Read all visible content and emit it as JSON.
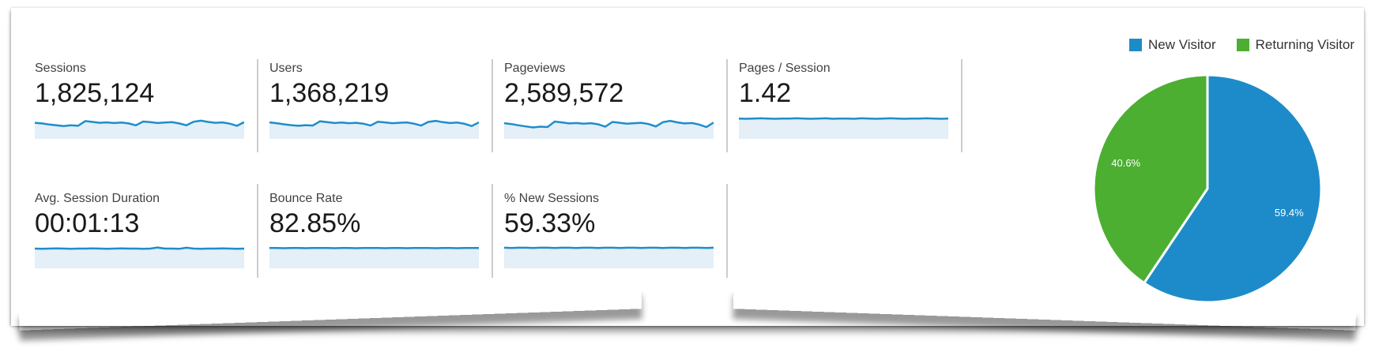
{
  "colors": {
    "blue": "#1d8bc9",
    "green": "#4caf31",
    "spark_line": "#1f8dcb",
    "spark_fill": "#e4eff8",
    "divider": "#cccccc",
    "label_text": "#414141",
    "value_text": "#1a1a1a",
    "pie_label_text": "#ffffff"
  },
  "scorecards": {
    "row1": [
      {
        "label": "Sessions",
        "value": "1,825,124"
      },
      {
        "label": "Users",
        "value": "1,368,219"
      },
      {
        "label": "Pageviews",
        "value": "2,589,572"
      },
      {
        "label": "Pages / Session",
        "value": "1.42"
      }
    ],
    "row2": [
      {
        "label": "Avg. Session Duration",
        "value": "00:01:13"
      },
      {
        "label": "Bounce Rate",
        "value": "82.85%"
      },
      {
        "label": "% New Sessions",
        "value": "59.33%"
      }
    ]
  },
  "legend": {
    "items": [
      {
        "label": "New Visitor",
        "color": "#1d8bc9"
      },
      {
        "label": "Returning Visitor",
        "color": "#4caf31"
      }
    ]
  },
  "chart_data": [
    {
      "type": "line",
      "title": "Metric sparklines (trend over report period)",
      "note": "values are normalized vertical positions (0 = top of sparkline, 1 = bottom); axes unlabeled in source",
      "grid": false,
      "series": [
        {
          "name": "Sessions",
          "display_value": "1,825,124",
          "values": [
            0.3,
            0.33,
            0.38,
            0.42,
            0.45,
            0.42,
            0.44,
            0.22,
            0.26,
            0.3,
            0.28,
            0.31,
            0.29,
            0.33,
            0.42,
            0.24,
            0.27,
            0.31,
            0.29,
            0.27,
            0.33,
            0.42,
            0.25,
            0.2,
            0.26,
            0.3,
            0.28,
            0.34,
            0.44,
            0.27
          ]
        },
        {
          "name": "Users",
          "display_value": "1,368,219",
          "values": [
            0.28,
            0.32,
            0.37,
            0.41,
            0.44,
            0.41,
            0.43,
            0.23,
            0.27,
            0.31,
            0.29,
            0.32,
            0.3,
            0.34,
            0.43,
            0.25,
            0.28,
            0.32,
            0.3,
            0.28,
            0.34,
            0.43,
            0.26,
            0.21,
            0.27,
            0.31,
            0.29,
            0.35,
            0.45,
            0.28
          ]
        },
        {
          "name": "Pageviews",
          "display_value": "2,589,572",
          "values": [
            0.32,
            0.36,
            0.42,
            0.47,
            0.52,
            0.48,
            0.5,
            0.24,
            0.28,
            0.33,
            0.31,
            0.34,
            0.32,
            0.37,
            0.48,
            0.26,
            0.3,
            0.34,
            0.32,
            0.3,
            0.36,
            0.47,
            0.27,
            0.21,
            0.28,
            0.33,
            0.31,
            0.38,
            0.5,
            0.29
          ]
        },
        {
          "name": "Pages / Session",
          "display_value": "1.42",
          "values": [
            0.1,
            0.11,
            0.1,
            0.09,
            0.1,
            0.11,
            0.1,
            0.1,
            0.09,
            0.1,
            0.11,
            0.1,
            0.09,
            0.11,
            0.1,
            0.1,
            0.11,
            0.09,
            0.1,
            0.11,
            0.1,
            0.09,
            0.1,
            0.11,
            0.1,
            0.1,
            0.09,
            0.1,
            0.11,
            0.1
          ]
        },
        {
          "name": "Avg. Session Duration",
          "display_value": "00:01:13",
          "values": [
            0.13,
            0.14,
            0.13,
            0.12,
            0.13,
            0.14,
            0.13,
            0.13,
            0.12,
            0.13,
            0.14,
            0.13,
            0.12,
            0.13,
            0.13,
            0.14,
            0.13,
            0.08,
            0.13,
            0.13,
            0.14,
            0.09,
            0.13,
            0.14,
            0.13,
            0.13,
            0.12,
            0.13,
            0.14,
            0.13
          ]
        },
        {
          "name": "Bounce Rate",
          "display_value": "82.85%",
          "values": [
            0.1,
            0.1,
            0.11,
            0.1,
            0.1,
            0.11,
            0.1,
            0.1,
            0.1,
            0.11,
            0.1,
            0.1,
            0.11,
            0.1,
            0.1,
            0.1,
            0.11,
            0.1,
            0.1,
            0.11,
            0.1,
            0.1,
            0.1,
            0.11,
            0.1,
            0.1,
            0.11,
            0.1,
            0.1,
            0.1
          ]
        },
        {
          "name": "% New Sessions",
          "display_value": "59.33%",
          "values": [
            0.09,
            0.1,
            0.09,
            0.09,
            0.1,
            0.09,
            0.09,
            0.1,
            0.09,
            0.09,
            0.1,
            0.09,
            0.09,
            0.1,
            0.09,
            0.09,
            0.1,
            0.09,
            0.09,
            0.1,
            0.09,
            0.09,
            0.1,
            0.09,
            0.09,
            0.1,
            0.09,
            0.09,
            0.1,
            0.09
          ]
        }
      ]
    },
    {
      "type": "pie",
      "title": "New vs Returning Visitor share of sessions",
      "labels": [
        "New Visitor",
        "Returning Visitor"
      ],
      "values": [
        59.4,
        40.6
      ],
      "display": [
        "59.4%",
        "40.6%"
      ],
      "colors": [
        "#1d8bc9",
        "#4caf31"
      ],
      "start_angle": "12 o'clock, clockwise",
      "legend_position": "top-right",
      "slice_separator": "#ffffff"
    }
  ]
}
